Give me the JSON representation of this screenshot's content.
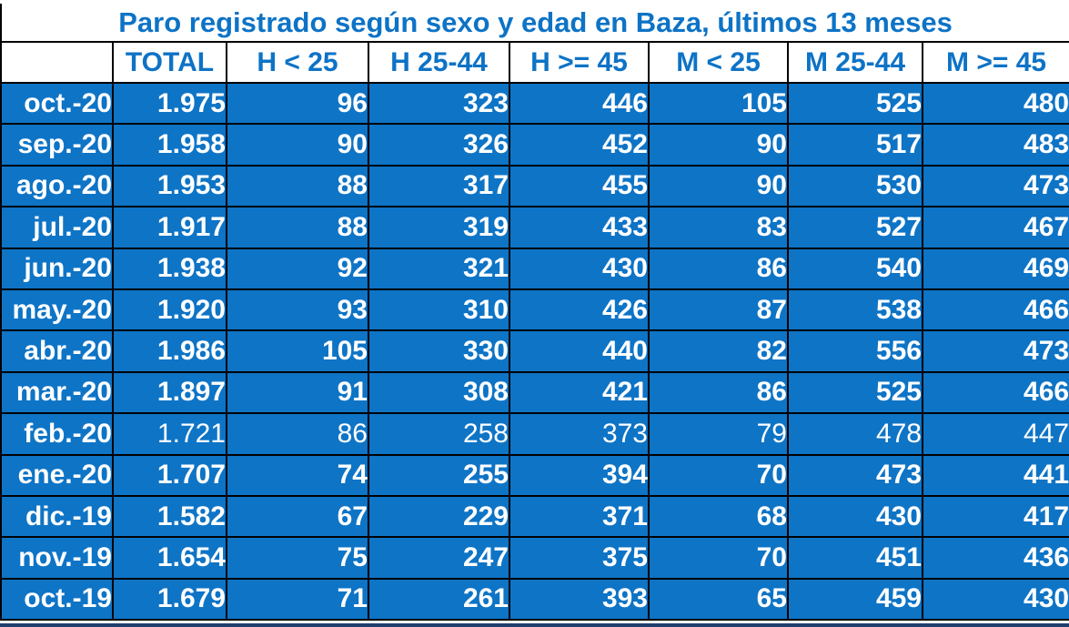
{
  "title": "Paro registrado según sexo y edad en Baza, últimos 13 meses",
  "columns": [
    "",
    "TOTAL",
    "H < 25",
    "H 25-44",
    "H >= 45",
    "M < 25",
    "M 25-44",
    "M >= 45"
  ],
  "rows": [
    {
      "month": "oct.-20",
      "values": [
        "1.975",
        "96",
        "323",
        "446",
        "105",
        "525",
        "480"
      ],
      "muted": false
    },
    {
      "month": "sep.-20",
      "values": [
        "1.958",
        "90",
        "326",
        "452",
        "90",
        "517",
        "483"
      ],
      "muted": false
    },
    {
      "month": "ago.-20",
      "values": [
        "1.953",
        "88",
        "317",
        "455",
        "90",
        "530",
        "473"
      ],
      "muted": false
    },
    {
      "month": "jul.-20",
      "values": [
        "1.917",
        "88",
        "319",
        "433",
        "83",
        "527",
        "467"
      ],
      "muted": false
    },
    {
      "month": "jun.-20",
      "values": [
        "1.938",
        "92",
        "321",
        "430",
        "86",
        "540",
        "469"
      ],
      "muted": false
    },
    {
      "month": "may.-20",
      "values": [
        "1.920",
        "93",
        "310",
        "426",
        "87",
        "538",
        "466"
      ],
      "muted": false
    },
    {
      "month": "abr.-20",
      "values": [
        "1.986",
        "105",
        "330",
        "440",
        "82",
        "556",
        "473"
      ],
      "muted": false
    },
    {
      "month": "mar.-20",
      "values": [
        "1.897",
        "91",
        "308",
        "421",
        "86",
        "525",
        "466"
      ],
      "muted": false
    },
    {
      "month": "feb.-20",
      "values": [
        "1.721",
        "86",
        "258",
        "373",
        "79",
        "478",
        "447"
      ],
      "muted": true
    },
    {
      "month": "ene.-20",
      "values": [
        "1.707",
        "74",
        "255",
        "394",
        "70",
        "473",
        "441"
      ],
      "muted": false
    },
    {
      "month": "dic.-19",
      "values": [
        "1.582",
        "67",
        "229",
        "371",
        "68",
        "430",
        "417"
      ],
      "muted": false
    },
    {
      "month": "nov.-19",
      "values": [
        "1.654",
        "75",
        "247",
        "375",
        "70",
        "451",
        "436"
      ],
      "muted": false
    },
    {
      "month": "oct.-19",
      "values": [
        "1.679",
        "71",
        "261",
        "393",
        "65",
        "459",
        "430"
      ],
      "muted": false
    }
  ],
  "colors": {
    "accent_blue_text": "#0d73c6",
    "cell_blue": "#0e74c6",
    "cell_text": "#ffffff",
    "border": "#000000",
    "bottom_strip_navy": "#1f3f6e",
    "background": "#ffffff"
  },
  "chart_data": {
    "type": "table",
    "title": "Paro registrado según sexo y edad en Baza, últimos 13 meses",
    "col_labels": [
      "TOTAL",
      "H < 25",
      "H 25-44",
      "H >= 45",
      "M < 25",
      "M 25-44",
      "M >= 45"
    ],
    "row_labels": [
      "oct.-20",
      "sep.-20",
      "ago.-20",
      "jul.-20",
      "jun.-20",
      "may.-20",
      "abr.-20",
      "mar.-20",
      "feb.-20",
      "ene.-20",
      "dic.-19",
      "nov.-19",
      "oct.-19"
    ],
    "matrix": [
      [
        1975,
        96,
        323,
        446,
        105,
        525,
        480
      ],
      [
        1958,
        90,
        326,
        452,
        90,
        517,
        483
      ],
      [
        1953,
        88,
        317,
        455,
        90,
        530,
        473
      ],
      [
        1917,
        88,
        319,
        433,
        83,
        527,
        467
      ],
      [
        1938,
        92,
        321,
        430,
        86,
        540,
        469
      ],
      [
        1920,
        93,
        310,
        426,
        87,
        538,
        466
      ],
      [
        1986,
        105,
        330,
        440,
        82,
        556,
        473
      ],
      [
        1897,
        91,
        308,
        421,
        86,
        525,
        466
      ],
      [
        1721,
        86,
        258,
        373,
        79,
        478,
        447
      ],
      [
        1707,
        74,
        255,
        394,
        70,
        473,
        441
      ],
      [
        1582,
        67,
        229,
        371,
        68,
        430,
        417
      ],
      [
        1654,
        75,
        247,
        375,
        70,
        451,
        436
      ],
      [
        1679,
        71,
        261,
        393,
        65,
        459,
        430
      ]
    ]
  }
}
